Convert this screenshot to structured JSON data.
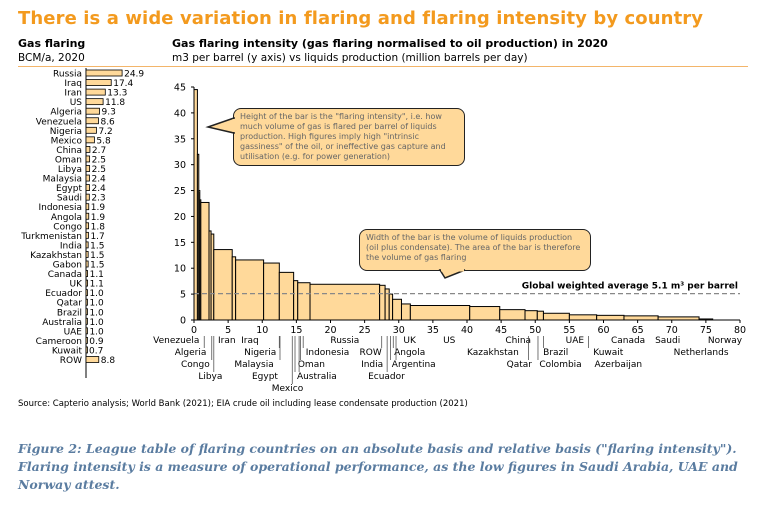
{
  "title": "There is a wide variation in flaring and flaring intensity by country",
  "left_panel": {
    "title": "Gas flaring",
    "unit": "BCM/a, 2020"
  },
  "main_panel": {
    "title": "Gas flaring intensity (gas flaring normalised to oil production) in 2020",
    "subtitle": "m3 per barrel (y axis) vs liquids production (million barrels per day)"
  },
  "callouts": {
    "height": "Height of the bar is the \"flaring intensity\", i.e. how much volume of gas is flared per barrel of liquids production.  High figures imply high \"intrinsic gassiness\" of the oil, or ineffective gas capture and utilisation (e.g. for power generation)",
    "width": "Width of the bar is the volume of liquids production (oil plus condensate).  The area of the bar is therefore the volume of gas flaring"
  },
  "source": "Source: Capterio analysis; World Bank (2021); EIA crude oil including lease condensate production (2021)",
  "caption": "Figure 2: League table of flaring countries on an absolute basis and relative basis (\"flaring intensity\"). Flaring intensity is a measure of operational performance, as the low figures in Saudi Arabia, UAE and Norway attest.",
  "colors": {
    "title": "#F39A1E",
    "bar_fill": "#FFD99A",
    "bar_stroke": "#000000",
    "caption": "#5A7CA0",
    "average_line": "#888888"
  },
  "chart_data": [
    {
      "type": "bar",
      "orientation": "horizontal",
      "title": "Gas flaring",
      "unit": "BCM/a, 2020",
      "categories": [
        "Russia",
        "Iraq",
        "Iran",
        "US",
        "Algeria",
        "Venezuela",
        "Nigeria",
        "Mexico",
        "China",
        "Oman",
        "Libya",
        "Malaysia",
        "Egypt",
        "Saudi",
        "Indonesia",
        "Angola",
        "Congo",
        "Turkmenistan",
        "India",
        "Kazakhstan",
        "Gabon",
        "Canada",
        "UK",
        "Ecuador",
        "Qatar",
        "Brazil",
        "Australia",
        "UAE",
        "Cameroon",
        "Kuwait",
        "ROW"
      ],
      "values": [
        24.9,
        17.4,
        13.3,
        11.8,
        9.3,
        8.6,
        7.2,
        5.8,
        2.7,
        2.5,
        2.5,
        2.4,
        2.4,
        2.3,
        1.9,
        1.9,
        1.8,
        1.7,
        1.5,
        1.5,
        1.5,
        1.1,
        1.1,
        1.0,
        1.0,
        1.0,
        1.0,
        1.0,
        0.9,
        0.7,
        8.8
      ],
      "labels": [
        "24.9",
        "17.4",
        "13.3",
        "11.8",
        "9.3",
        "8.6",
        "7.2",
        "5.8",
        "2.7",
        "2.5",
        "2.5",
        "2.4",
        "2.4",
        "2.3",
        "1.9",
        "1.9",
        "1.8",
        "1.7",
        "1.5",
        "1.5",
        "1.5",
        "1.1",
        "1.1",
        "1.0",
        "1.0",
        "1.0",
        "1.0",
        "1.0",
        "0.9",
        "0.7",
        "8.8"
      ]
    },
    {
      "type": "bar",
      "variant": "variable-width step",
      "title": "Gas flaring intensity (gas flaring normalised to oil production) in 2020",
      "xlabel": "liquids production (million barrels per day)",
      "ylabel": "m3 per barrel",
      "xlim": [
        0,
        80
      ],
      "ylim": [
        0,
        45
      ],
      "xticks": [
        "0",
        "5",
        "10",
        "15",
        "20",
        "25",
        "30",
        "35",
        "40",
        "45",
        "50",
        "55",
        "60",
        "65",
        "70",
        "75",
        "80"
      ],
      "yticks": [
        "0",
        "5",
        "10",
        "15",
        "20",
        "25",
        "30",
        "35",
        "40",
        "45"
      ],
      "bars": [
        {
          "x0": 0,
          "x1": 0.5,
          "y": 44.5
        },
        {
          "x0": 0.5,
          "x1": 0.7,
          "y": 32
        },
        {
          "x0": 0.7,
          "x1": 0.85,
          "y": 25
        },
        {
          "x0": 0.85,
          "x1": 1.0,
          "y": 23.2
        },
        {
          "x0": 1.0,
          "x1": 2.2,
          "y": 22.7
        },
        {
          "x0": 2.2,
          "x1": 2.5,
          "y": 17.2
        },
        {
          "x0": 2.5,
          "x1": 2.9,
          "y": 16.6
        },
        {
          "x0": 2.9,
          "x1": 5.6,
          "y": 13.6
        },
        {
          "x0": 5.6,
          "x1": 6.1,
          "y": 12.2
        },
        {
          "x0": 6.1,
          "x1": 10.2,
          "y": 11.6
        },
        {
          "x0": 10.2,
          "x1": 12.5,
          "y": 11.0
        },
        {
          "x0": 12.5,
          "x1": 14.6,
          "y": 9.2
        },
        {
          "x0": 14.6,
          "x1": 15.2,
          "y": 7.6
        },
        {
          "x0": 15.2,
          "x1": 17.0,
          "y": 7.2
        },
        {
          "x0": 17.0,
          "x1": 27.2,
          "y": 6.9
        },
        {
          "x0": 27.2,
          "x1": 28.0,
          "y": 6.7
        },
        {
          "x0": 28.0,
          "x1": 28.6,
          "y": 6.0
        },
        {
          "x0": 28.6,
          "x1": 29.1,
          "y": 5.0
        },
        {
          "x0": 29.1,
          "x1": 30.4,
          "y": 4.0
        },
        {
          "x0": 30.4,
          "x1": 31.7,
          "y": 3.1
        },
        {
          "x0": 31.7,
          "x1": 40.4,
          "y": 2.8
        },
        {
          "x0": 40.4,
          "x1": 44.8,
          "y": 2.6
        },
        {
          "x0": 44.8,
          "x1": 48.5,
          "y": 2.0
        },
        {
          "x0": 48.5,
          "x1": 50.3,
          "y": 1.8
        },
        {
          "x0": 50.3,
          "x1": 51.2,
          "y": 1.7
        },
        {
          "x0": 51.2,
          "x1": 55.0,
          "y": 1.3
        },
        {
          "x0": 55.0,
          "x1": 59.0,
          "y": 1.0
        },
        {
          "x0": 59.0,
          "x1": 63.0,
          "y": 0.9
        },
        {
          "x0": 63.0,
          "x1": 68.0,
          "y": 0.8
        },
        {
          "x0": 68.0,
          "x1": 74.0,
          "y": 0.6
        },
        {
          "x0": 74.0,
          "x1": 76.0,
          "y": 0.2
        }
      ],
      "average": {
        "value": 5.1,
        "label": "Global weighted average 5.1 m³ per barrel"
      },
      "country_labels": [
        {
          "name": "Venezuela",
          "x": -2.6
        },
        {
          "name": "Iran",
          "x": 4.8
        },
        {
          "name": "Iraq",
          "x": 8.2
        },
        {
          "name": "Russia",
          "x": 22.1
        },
        {
          "name": "UK",
          "x": 31.6
        },
        {
          "name": "US",
          "x": 37.4
        },
        {
          "name": "China",
          "x": 47.5
        },
        {
          "name": "UAE",
          "x": 55.8
        },
        {
          "name": "Canada",
          "x": 63.6
        },
        {
          "name": "Saudi",
          "x": 69.4
        },
        {
          "name": "Norway",
          "x": 77.8
        },
        {
          "name": "Algeria",
          "x": -0.5
        },
        {
          "name": "Nigeria",
          "x": 9.7
        },
        {
          "name": "Indonesia",
          "x": 20.0
        },
        {
          "name": "ROW",
          "x": 25.3
        },
        {
          "name": "Angola",
          "x": 31.6
        },
        {
          "name": "Kazakhstan",
          "x": 43.8
        },
        {
          "name": "Brazil",
          "x": 53.0
        },
        {
          "name": "Kuwait",
          "x": 60.7
        },
        {
          "name": "Netherlands",
          "x": 74.3
        },
        {
          "name": "Congo",
          "x": 0.2
        },
        {
          "name": "Malaysia",
          "x": 8.8
        },
        {
          "name": "Oman",
          "x": 17.2
        },
        {
          "name": "India",
          "x": 26.1
        },
        {
          "name": "Argentina",
          "x": 32.2
        },
        {
          "name": "Qatar",
          "x": 48.4
        },
        {
          "name": "Colombia",
          "x": 54.0
        },
        {
          "name": "Azerbaijan",
          "x": 61.0
        },
        {
          "name": "Libya",
          "x": 2.4
        },
        {
          "name": "Egypt",
          "x": 10.4
        },
        {
          "name": "Australia",
          "x": 18.0
        },
        {
          "name": "Ecuador",
          "x": 28.2
        },
        {
          "name": "Mexico",
          "x": 13.7
        }
      ]
    }
  ]
}
